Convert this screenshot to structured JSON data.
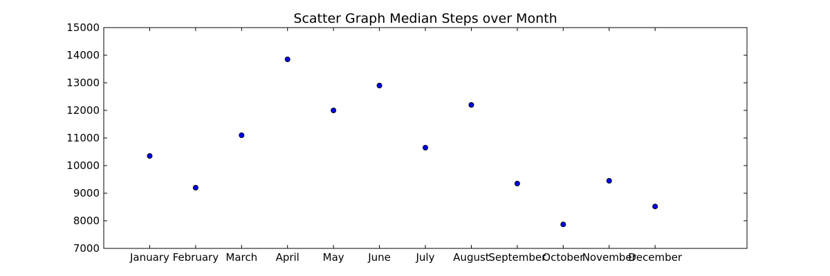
{
  "chart_data": {
    "type": "scatter",
    "title": "Scatter Graph Median Steps over Month",
    "xlabel": "",
    "ylabel": "",
    "categories": [
      "January",
      "February",
      "March",
      "April",
      "May",
      "June",
      "July",
      "August",
      "September",
      "October",
      "November",
      "December"
    ],
    "x": [
      1,
      2,
      3,
      4,
      5,
      6,
      7,
      8,
      9,
      10,
      11,
      12
    ],
    "xlim": [
      0,
      14
    ],
    "ylim": [
      7000,
      15000
    ],
    "yticks": [
      "7000",
      "8000",
      "9000",
      "10000",
      "11000",
      "12000",
      "13000",
      "14000",
      "15000"
    ],
    "series": [
      {
        "values": [
          10350,
          9200,
          11100,
          13850,
          12000,
          12900,
          10650,
          12200,
          9350,
          7870,
          9450,
          8520
        ],
        "color": "#0000ff"
      }
    ],
    "grid": false
  }
}
